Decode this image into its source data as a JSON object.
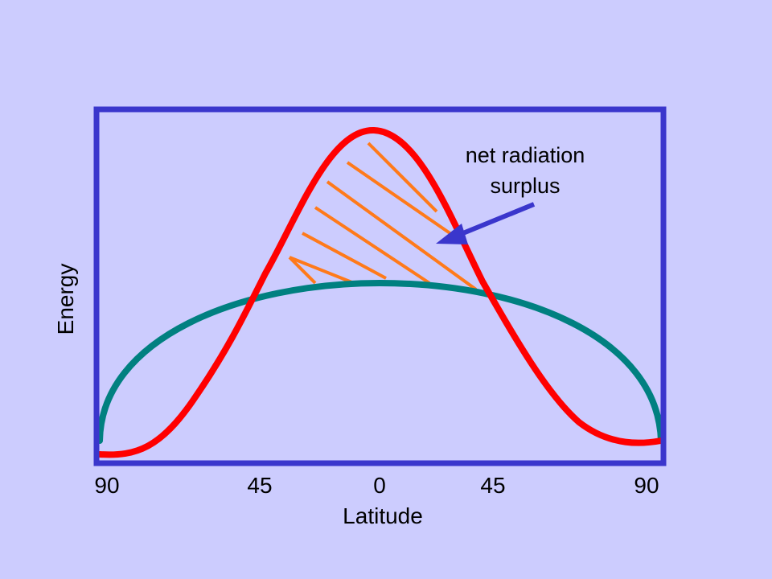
{
  "diagram": {
    "x_axis": {
      "label": "Latitude",
      "ticks": [
        "90",
        "45",
        "0",
        "45",
        "90"
      ]
    },
    "y_axis": {
      "label": "Energy"
    },
    "annotation": {
      "line1": "net radiation",
      "line2": "surplus"
    },
    "colors": {
      "background": "#ccccfe",
      "frame": "#3a36cc",
      "incoming_curve": "#ff0000",
      "outgoing_curve": "#008080",
      "hatch": "#ff7a1a",
      "arrow": "#3a36cc"
    }
  }
}
